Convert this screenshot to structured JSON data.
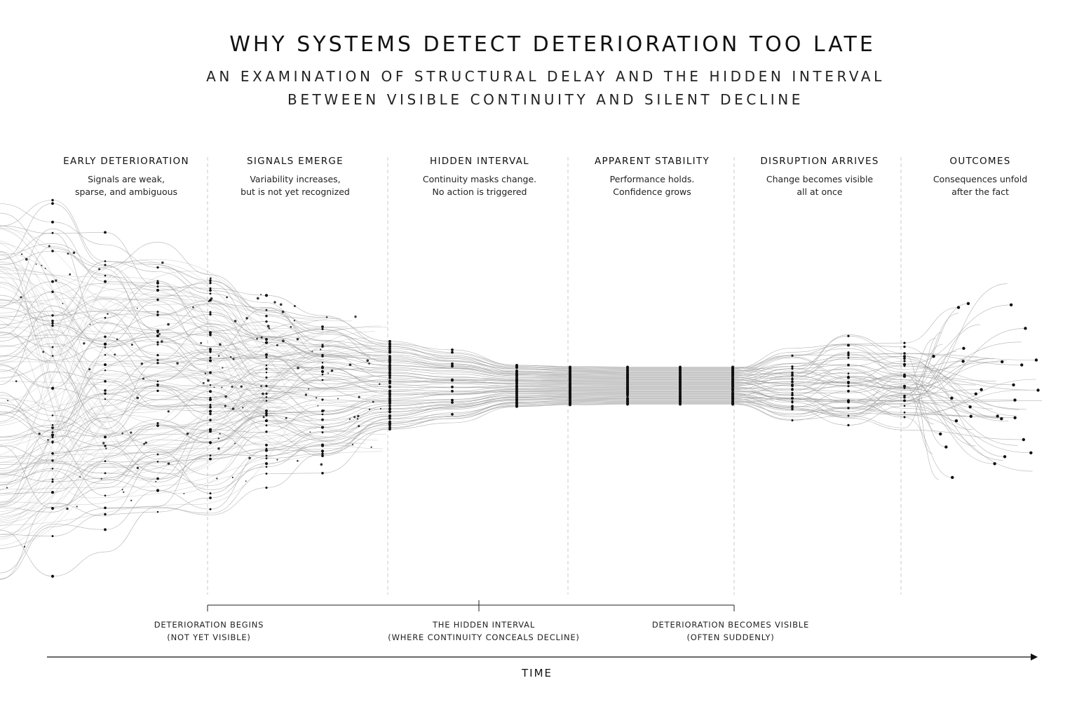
{
  "title": "WHY SYSTEMS DETECT DETERIORATION TOO LATE",
  "subtitle": {
    "line1": "AN EXAMINATION OF STRUCTURAL DELAY AND THE HIDDEN INTERVAL",
    "line2": "BETWEEN VISIBLE CONTINUITY AND SILENT DECLINE"
  },
  "phases": [
    {
      "title": "EARLY DETERIORATION",
      "line1": "Signals are weak,",
      "line2": "sparse, and ambiguous"
    },
    {
      "title": "SIGNALS EMERGE",
      "line1": "Variability increases,",
      "line2": "but is not yet recognized"
    },
    {
      "title": "HIDDEN INTERVAL",
      "line1": "Continuity masks change.",
      "line2": "No action is triggered"
    },
    {
      "title": "APPARENT STABILITY",
      "line1": "Performance holds.",
      "line2": "Confidence grows"
    },
    {
      "title": "DISRUPTION ARRIVES",
      "line1": "Change becomes visible",
      "line2": "all at once"
    },
    {
      "title": "OUTCOMES",
      "line1": "Consequences unfold",
      "line2": "after the fact"
    }
  ],
  "markers": [
    {
      "line1": "DETERIORATION BEGINS",
      "line2": "(NOT YET VISIBLE)"
    },
    {
      "line1": "THE HIDDEN INTERVAL",
      "line2": "(WHERE CONTINUITY CONCEALS DECLINE)"
    },
    {
      "line1": "DETERIORATION BECOMES VISIBLE",
      "line2": "(OFTEN SUDDENLY)"
    }
  ],
  "axis": {
    "label": "TIME"
  },
  "colors": {
    "ink": "#111111",
    "line": "#9a9a9a",
    "divider": "#c8c8c8"
  }
}
